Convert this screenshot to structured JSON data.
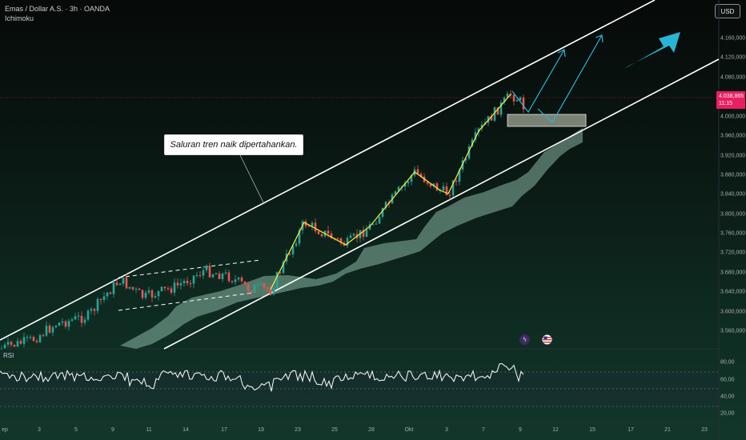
{
  "header": {
    "symbol_line": "Emas / Dollar A.S. · 3h · OANDA",
    "indicator": "Ichimoku"
  },
  "currency_button": "USD",
  "annotation": "Saluran tren naik dipertahankan.",
  "current_price": {
    "value": "4.038,865",
    "countdown": "11:15"
  },
  "price_axis": [
    "4.160,000",
    "4.120,000",
    "4.080,000",
    "4.000,000",
    "3.960,000",
    "3.920,000",
    "3.880,000",
    "3.840,000",
    "3.800,000",
    "3.760,000",
    "3.720,000",
    "3.680,000",
    "3.640,000",
    "3.600,000",
    "3.560,000"
  ],
  "rsi": {
    "label": "RSI",
    "axis": [
      "80,00",
      "60,00",
      "40,00",
      "20,00"
    ]
  },
  "time_axis": [
    "ep",
    "3",
    "5",
    "9",
    "11",
    "14",
    "17",
    "19",
    "23",
    "25",
    "28",
    "Okt",
    "3",
    "7",
    "9",
    "12",
    "15",
    "17",
    "21",
    "23"
  ],
  "colors": {
    "channel": "#ffffff",
    "zigzag": "#ffeb3b",
    "arrow": "#29b6d6",
    "up": "#26a69a",
    "down": "#ef5350",
    "price_tag": "#e91e63",
    "cloud": "#a5d6c3"
  },
  "icons": [
    "lightning-icon",
    "us-flag-icon",
    "trend-arrow-icon"
  ]
}
